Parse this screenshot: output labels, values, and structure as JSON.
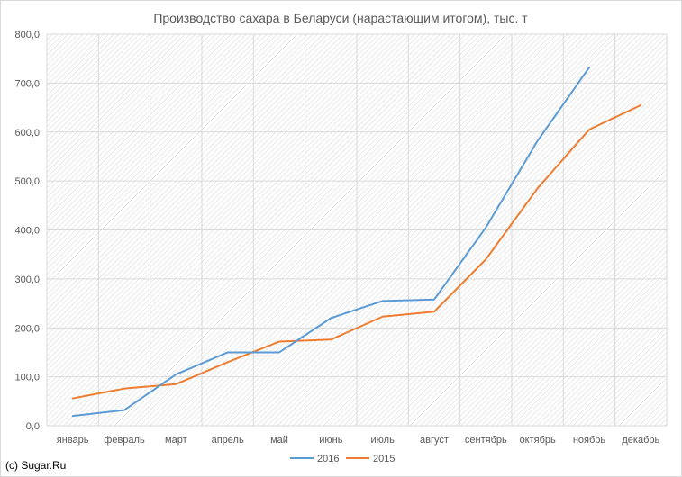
{
  "chart_data": {
    "type": "line",
    "title": "Производство сахара в Беларуси (нарастающим итогом), тыс. т",
    "xlabel": "",
    "ylabel": "",
    "ylim": [
      0,
      800
    ],
    "y_ticks": [
      "0,0",
      "100,0",
      "200,0",
      "300,0",
      "400,0",
      "500,0",
      "600,0",
      "700,0",
      "800,0"
    ],
    "categories": [
      "январь",
      "февраль",
      "март",
      "апрель",
      "май",
      "июнь",
      "июль",
      "август",
      "сентябрь",
      "октябрь",
      "ноябрь",
      "декабрь"
    ],
    "grid": true,
    "legend_position": "bottom",
    "series": [
      {
        "name": "2016",
        "color": "#5B9BD5",
        "values": [
          20,
          32,
          105,
          150,
          150,
          220,
          255,
          258,
          405,
          582,
          732,
          null
        ]
      },
      {
        "name": "2015",
        "color": "#ED7D31",
        "values": [
          56,
          76,
          85,
          130,
          172,
          176,
          223,
          233,
          340,
          485,
          605,
          655
        ]
      }
    ]
  },
  "footer": {
    "copyright": "(c) Sugar.Ru"
  }
}
